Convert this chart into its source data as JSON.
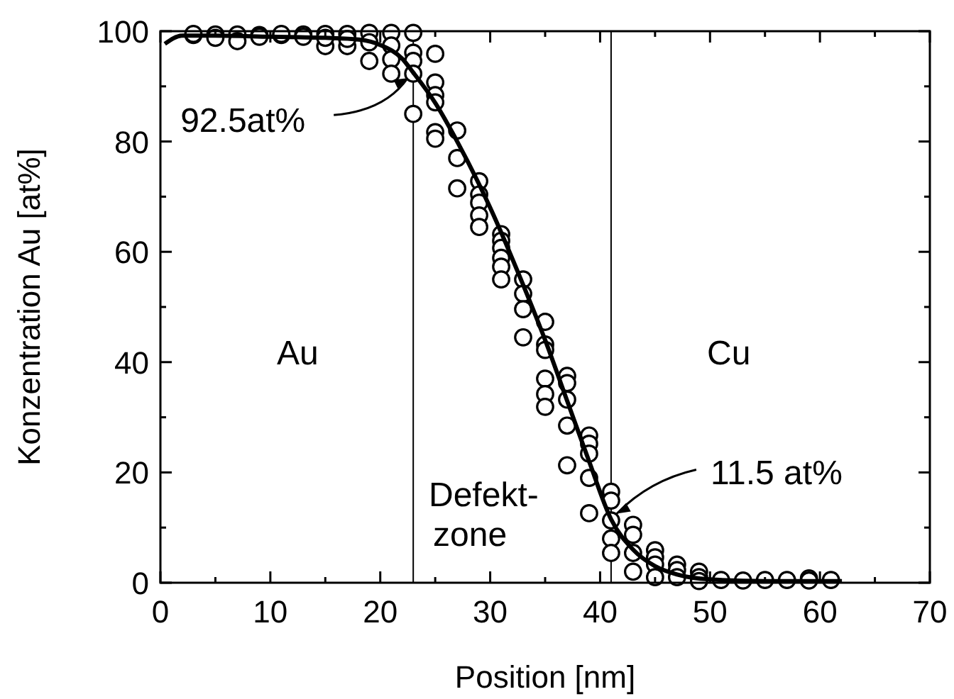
{
  "chart_data": {
    "type": "scatter",
    "xlabel": "Position [nm]",
    "ylabel": "Konzentration Au [at%]",
    "xlim": [
      0,
      70
    ],
    "xticks": [
      0,
      10,
      20,
      30,
      40,
      50,
      60,
      70
    ],
    "ylim": [
      0,
      100
    ],
    "yticks": [
      0,
      20,
      40,
      60,
      80,
      100
    ],
    "grid": false,
    "series": [
      {
        "color": "#000000",
        "marker": "circle",
        "x": [
          3,
          3,
          5,
          5,
          7,
          7,
          9,
          9,
          11,
          11,
          13,
          13,
          15,
          15,
          15,
          17,
          17,
          17,
          19,
          19,
          19,
          21,
          21,
          21,
          21,
          23,
          23,
          23,
          23,
          23,
          25,
          25,
          25,
          25,
          25,
          25,
          27,
          27,
          27,
          29,
          29,
          29,
          29,
          29,
          31,
          31,
          31,
          31,
          31,
          31,
          33,
          33,
          33,
          33,
          35,
          35,
          35,
          35,
          35,
          35,
          37,
          37,
          37,
          37,
          37,
          39,
          39,
          39,
          39,
          39,
          41,
          41,
          41,
          41,
          41,
          43,
          43,
          43,
          43,
          45,
          45,
          45,
          45,
          47,
          47,
          47,
          49,
          49,
          49,
          51,
          53,
          55,
          57,
          59,
          59,
          61
        ],
        "values": [
          99.3,
          99.5,
          99.4,
          98.8,
          99.4,
          98.2,
          99.3,
          99,
          99.3,
          99.5,
          99.4,
          99,
          99.5,
          97.3,
          98.8,
          99.5,
          97.3,
          98.6,
          99.7,
          98,
          94.6,
          99.7,
          97.4,
          94.9,
          92.3,
          99.7,
          96.1,
          94.6,
          92.3,
          85,
          95.9,
          90.7,
          88.4,
          87.1,
          81.7,
          80.5,
          82,
          77,
          71.5,
          72.8,
          70.4,
          68.9,
          66.6,
          64.5,
          63.2,
          62,
          60.7,
          58.9,
          57.3,
          55,
          55,
          52.4,
          49.6,
          44.5,
          47.3,
          43.2,
          42.2,
          37,
          34.2,
          31.9,
          37.5,
          36.2,
          33.2,
          28.5,
          21.3,
          26.7,
          25.2,
          23.4,
          19,
          12.6,
          16.5,
          14.9,
          11.3,
          8,
          5.4,
          10.5,
          8.7,
          5.4,
          2,
          5.9,
          4.6,
          3.3,
          1,
          3.3,
          2.3,
          1,
          2,
          1,
          0.3,
          0.5,
          0.4,
          0.5,
          0.5,
          0.8,
          0.4,
          0.5
        ]
      },
      {
        "type": "line",
        "color": "#000000",
        "x": [
          0.4,
          2,
          5,
          10,
          15,
          18,
          20,
          22,
          23,
          25,
          27,
          30,
          33,
          35,
          37,
          39,
          41,
          43,
          45,
          47,
          50,
          55,
          62
        ],
        "values": [
          97.7,
          99.2,
          99.2,
          99,
          98.8,
          98.5,
          97.5,
          95,
          92.5,
          87,
          80,
          68,
          54,
          44,
          33,
          22,
          11.5,
          6,
          3,
          1.5,
          0.6,
          0.3,
          0.3
        ]
      }
    ],
    "ref_lines": [
      {
        "axis": "x",
        "value": 23,
        "color": "#000000"
      },
      {
        "axis": "x",
        "value": 41,
        "color": "#000000"
      }
    ],
    "annotations": [
      {
        "text": "92.5at%",
        "x": 23,
        "y": 92.5
      },
      {
        "text": "11.5 at%",
        "x": 41,
        "y": 11.5
      },
      "Au",
      "Defekt-\nzone",
      "Cu"
    ]
  }
}
